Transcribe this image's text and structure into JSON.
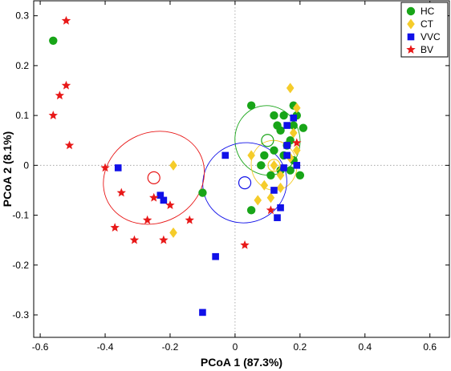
{
  "chart_data": {
    "type": "scatter",
    "xlabel": "PCoA 1 (87.3%)",
    "ylabel": "PCoA 2 (8.1%)",
    "xlim": [
      -0.62,
      0.66
    ],
    "ylim": [
      -0.345,
      0.33
    ],
    "xticks": [
      "-0.6",
      "-0.4",
      "-0.2",
      "0",
      "0.2",
      "0.4",
      "0.6"
    ],
    "yticks": [
      "-0.3",
      "-0.2",
      "-0.1",
      "0",
      "0.1",
      "0.2",
      "0.3"
    ],
    "grid": false,
    "zero_lines": true,
    "legend_position": "top-right",
    "series": [
      {
        "name": "HC",
        "marker": "circle",
        "color": "#18a518",
        "points": [
          [
            -0.56,
            0.25
          ],
          [
            0.05,
            0.12
          ],
          [
            0.12,
            0.1
          ],
          [
            0.15,
            0.1
          ],
          [
            0.18,
            0.12
          ],
          [
            0.19,
            0.1
          ],
          [
            0.13,
            0.08
          ],
          [
            0.18,
            0.08
          ],
          [
            0.21,
            0.075
          ],
          [
            0.14,
            0.07
          ],
          [
            0.17,
            0.05
          ],
          [
            0.16,
            0.04
          ],
          [
            0.12,
            0.03
          ],
          [
            0.09,
            0.02
          ],
          [
            0.15,
            0.02
          ],
          [
            0.18,
            0.01
          ],
          [
            0.08,
            0.0
          ],
          [
            0.14,
            -0.01
          ],
          [
            0.17,
            -0.01
          ],
          [
            0.11,
            -0.02
          ],
          [
            0.2,
            -0.02
          ],
          [
            -0.1,
            -0.055
          ],
          [
            0.05,
            -0.09
          ]
        ]
      },
      {
        "name": "CT",
        "marker": "diamond",
        "color": "#f5cc2a",
        "points": [
          [
            -0.19,
            0.0
          ],
          [
            -0.19,
            -0.135
          ],
          [
            0.17,
            0.155
          ],
          [
            0.19,
            0.115
          ],
          [
            0.18,
            0.065
          ],
          [
            0.19,
            0.03
          ],
          [
            0.05,
            0.02
          ],
          [
            0.12,
            0.0
          ],
          [
            0.14,
            -0.02
          ],
          [
            0.09,
            -0.04
          ],
          [
            0.14,
            -0.045
          ],
          [
            0.07,
            -0.07
          ],
          [
            0.11,
            -0.065
          ],
          [
            0.17,
            0.015
          ]
        ]
      },
      {
        "name": "VVC",
        "marker": "square",
        "color": "#1010e8",
        "points": [
          [
            -0.36,
            -0.005
          ],
          [
            -0.23,
            -0.06
          ],
          [
            -0.22,
            -0.07
          ],
          [
            -0.03,
            0.02
          ],
          [
            0.18,
            0.095
          ],
          [
            0.16,
            0.08
          ],
          [
            0.16,
            0.04
          ],
          [
            0.16,
            0.02
          ],
          [
            0.19,
            0.0
          ],
          [
            0.15,
            -0.005
          ],
          [
            0.12,
            -0.05
          ],
          [
            0.14,
            -0.085
          ],
          [
            0.13,
            -0.105
          ],
          [
            -0.06,
            -0.183
          ],
          [
            -0.1,
            -0.295
          ]
        ]
      },
      {
        "name": "BV",
        "marker": "star",
        "color": "#e81818",
        "points": [
          [
            -0.52,
            0.29
          ],
          [
            -0.52,
            0.16
          ],
          [
            -0.54,
            0.14
          ],
          [
            -0.56,
            0.1
          ],
          [
            -0.51,
            0.04
          ],
          [
            -0.4,
            -0.005
          ],
          [
            -0.35,
            -0.055
          ],
          [
            -0.25,
            -0.065
          ],
          [
            -0.2,
            -0.08
          ],
          [
            -0.14,
            -0.11
          ],
          [
            -0.27,
            -0.11
          ],
          [
            -0.37,
            -0.125
          ],
          [
            -0.31,
            -0.15
          ],
          [
            -0.22,
            -0.15
          ],
          [
            0.03,
            -0.16
          ],
          [
            0.11,
            -0.09
          ],
          [
            0.19,
            0.045
          ]
        ]
      }
    ],
    "centroids": [
      {
        "name": "HC",
        "x": 0.1,
        "y": 0.05,
        "color": "#18a518",
        "ellipse_rx": 0.1,
        "ellipse_ry": 0.07,
        "angle": 12
      },
      {
        "name": "CT",
        "x": 0.12,
        "y": 0.0,
        "color": "#f5cc2a",
        "ellipse_rx": 0.07,
        "ellipse_ry": 0.05,
        "angle": 10
      },
      {
        "name": "VVC",
        "x": 0.03,
        "y": -0.035,
        "color": "#1010e8",
        "ellipse_rx": 0.13,
        "ellipse_ry": 0.08,
        "angle": 18
      },
      {
        "name": "BV",
        "x": -0.25,
        "y": -0.025,
        "color": "#e81818",
        "ellipse_rx": 0.16,
        "ellipse_ry": 0.09,
        "angle": 28
      }
    ]
  }
}
